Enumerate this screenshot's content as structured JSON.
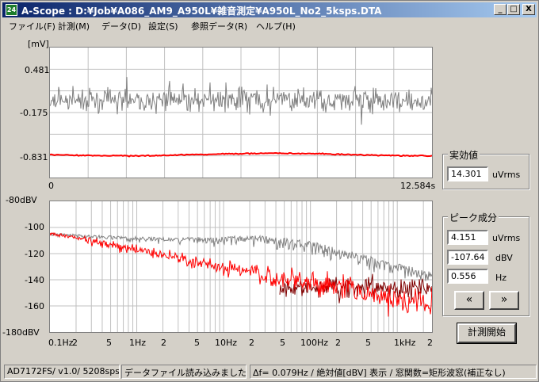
{
  "window": {
    "icon_text": "24",
    "title": "A-Scope : D:¥Job¥A086_AM9_A950L¥雑音測定¥A950L_No2_5ksps.DTA",
    "min_label": "_",
    "max_label": "□",
    "close_label": "X"
  },
  "menu": [
    {
      "label": "ファイル(F)"
    },
    {
      "label": "計測(M)"
    },
    {
      "label": "データ(D)"
    },
    {
      "label": "設定(S)"
    },
    {
      "label": "参照データ(R)"
    },
    {
      "label": "ヘルプ(H)"
    }
  ],
  "time_chart": {
    "unit": "[mV]",
    "y_ticks": [
      "0.481",
      "-0.175",
      "-0.831"
    ],
    "x_start": "0",
    "x_end": "12.584s"
  },
  "spectrum_chart": {
    "y_ticks": [
      "-80dBV",
      "-100",
      "-120",
      "-140",
      "-160",
      "-180dBV"
    ],
    "x_ticks": [
      "0.1Hz",
      "2",
      "5",
      "1Hz",
      "2",
      "5",
      "10Hz",
      "2",
      "5",
      "100Hz",
      "2",
      "5",
      "1kHz",
      "2"
    ]
  },
  "rms_group": {
    "title": "実効値",
    "value": "14.301",
    "unit": "uVrms"
  },
  "peak_group": {
    "title": "ピーク成分",
    "value1": "4.151",
    "unit1": "uVrms",
    "value2": "-107.64",
    "unit2": "dBV",
    "value3": "0.556",
    "unit3": "Hz",
    "prev_label": "«",
    "next_label": "»"
  },
  "measure_button": "計測開始",
  "status": {
    "device": "AD7172FS/ v1.0/ 5208sps",
    "message": "データファイル読み込みました",
    "info": "Δf= 0.079Hz / 絶対値[dBV] 表示 / 窓関数=矩形波窓(補正なし)"
  },
  "colors": {
    "trace_gray": "#808080",
    "trace_red": "#ff0000",
    "trace_darkred": "#800000",
    "grid": "#c0c0c0"
  }
}
